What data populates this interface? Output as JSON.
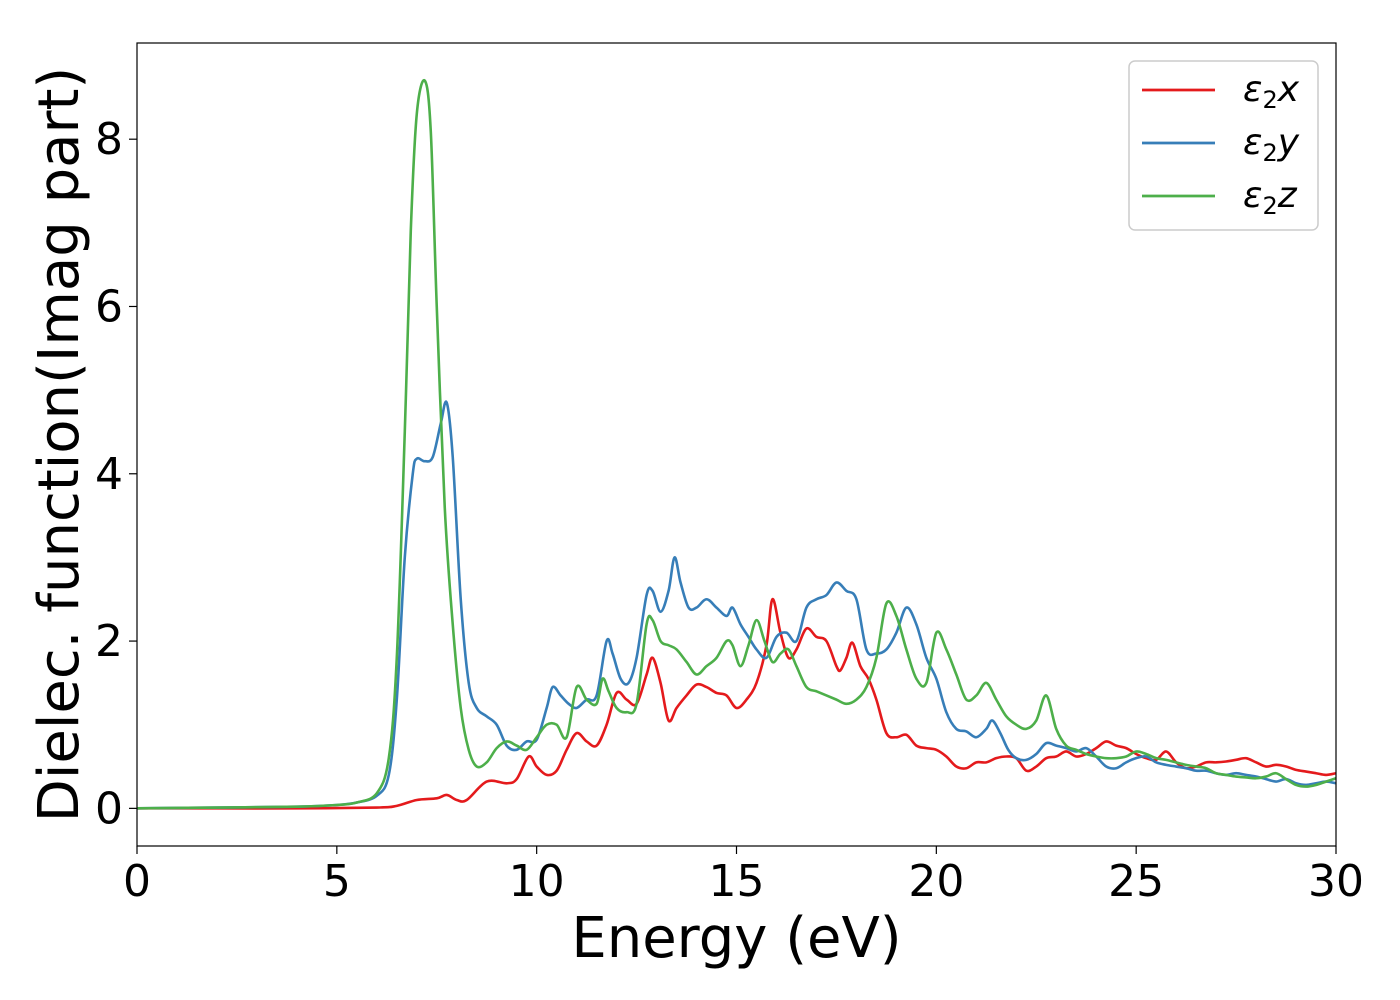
{
  "chart_data": {
    "type": "line",
    "xlabel": "Energy (eV)",
    "ylabel": "Dielec. function(Imag part)",
    "xlim": [
      0,
      30
    ],
    "ylim": [
      -0.45,
      9.15
    ],
    "xticks": [
      "0",
      "5",
      "10",
      "15",
      "20",
      "25",
      "30"
    ],
    "yticks": [
      "0",
      "2",
      "4",
      "6",
      "8"
    ],
    "grid": false,
    "legend_position": "top-right",
    "series": [
      {
        "name": "ε2x",
        "legend": {
          "base": "ε",
          "sub": "2",
          "var": "x"
        },
        "color": "#e41a1c",
        "points": [
          [
            0,
            0
          ],
          [
            2,
            0
          ],
          [
            4,
            0
          ],
          [
            6,
            0.01
          ],
          [
            6.5,
            0.03
          ],
          [
            7,
            0.1
          ],
          [
            7.5,
            0.12
          ],
          [
            7.75,
            0.16
          ],
          [
            8,
            0.1
          ],
          [
            8.25,
            0.1
          ],
          [
            8.75,
            0.32
          ],
          [
            9.25,
            0.3
          ],
          [
            9.5,
            0.35
          ],
          [
            9.8,
            0.62
          ],
          [
            10,
            0.5
          ],
          [
            10.25,
            0.4
          ],
          [
            10.5,
            0.45
          ],
          [
            10.75,
            0.7
          ],
          [
            11,
            0.9
          ],
          [
            11.25,
            0.8
          ],
          [
            11.5,
            0.75
          ],
          [
            11.75,
            1.0
          ],
          [
            12,
            1.38
          ],
          [
            12.25,
            1.3
          ],
          [
            12.5,
            1.25
          ],
          [
            12.75,
            1.6
          ],
          [
            12.9,
            1.8
          ],
          [
            13.1,
            1.5
          ],
          [
            13.3,
            1.05
          ],
          [
            13.5,
            1.2
          ],
          [
            13.75,
            1.35
          ],
          [
            14,
            1.48
          ],
          [
            14.25,
            1.45
          ],
          [
            14.5,
            1.38
          ],
          [
            14.75,
            1.35
          ],
          [
            15,
            1.2
          ],
          [
            15.25,
            1.3
          ],
          [
            15.5,
            1.5
          ],
          [
            15.75,
            1.95
          ],
          [
            15.9,
            2.5
          ],
          [
            16.1,
            2.1
          ],
          [
            16.3,
            1.8
          ],
          [
            16.5,
            1.9
          ],
          [
            16.75,
            2.15
          ],
          [
            17,
            2.05
          ],
          [
            17.25,
            2.0
          ],
          [
            17.5,
            1.7
          ],
          [
            17.6,
            1.65
          ],
          [
            17.75,
            1.8
          ],
          [
            17.9,
            1.98
          ],
          [
            18.1,
            1.7
          ],
          [
            18.3,
            1.55
          ],
          [
            18.5,
            1.3
          ],
          [
            18.75,
            0.9
          ],
          [
            19,
            0.85
          ],
          [
            19.25,
            0.88
          ],
          [
            19.5,
            0.75
          ],
          [
            19.75,
            0.72
          ],
          [
            20,
            0.7
          ],
          [
            20.25,
            0.62
          ],
          [
            20.5,
            0.5
          ],
          [
            20.75,
            0.48
          ],
          [
            21,
            0.55
          ],
          [
            21.25,
            0.55
          ],
          [
            21.5,
            0.6
          ],
          [
            21.75,
            0.62
          ],
          [
            22,
            0.6
          ],
          [
            22.25,
            0.45
          ],
          [
            22.5,
            0.5
          ],
          [
            22.75,
            0.6
          ],
          [
            23,
            0.62
          ],
          [
            23.25,
            0.68
          ],
          [
            23.5,
            0.62
          ],
          [
            23.75,
            0.65
          ],
          [
            24,
            0.72
          ],
          [
            24.25,
            0.8
          ],
          [
            24.5,
            0.75
          ],
          [
            24.75,
            0.72
          ],
          [
            25,
            0.65
          ],
          [
            25.25,
            0.6
          ],
          [
            25.5,
            0.58
          ],
          [
            25.75,
            0.68
          ],
          [
            26,
            0.55
          ],
          [
            26.25,
            0.48
          ],
          [
            26.5,
            0.5
          ],
          [
            26.75,
            0.55
          ],
          [
            27,
            0.55
          ],
          [
            27.25,
            0.56
          ],
          [
            27.5,
            0.58
          ],
          [
            27.75,
            0.6
          ],
          [
            28,
            0.55
          ],
          [
            28.25,
            0.5
          ],
          [
            28.5,
            0.52
          ],
          [
            28.75,
            0.5
          ],
          [
            29,
            0.46
          ],
          [
            29.25,
            0.44
          ],
          [
            29.5,
            0.42
          ],
          [
            29.75,
            0.4
          ],
          [
            30,
            0.42
          ]
        ]
      },
      {
        "name": "ε2y",
        "legend": {
          "base": "ε",
          "sub": "2",
          "var": "y"
        },
        "color": "#377eb8",
        "points": [
          [
            0,
            0
          ],
          [
            2,
            0.01
          ],
          [
            4,
            0.02
          ],
          [
            5,
            0.04
          ],
          [
            5.5,
            0.07
          ],
          [
            6,
            0.15
          ],
          [
            6.3,
            0.4
          ],
          [
            6.5,
            1.3
          ],
          [
            6.7,
            3.0
          ],
          [
            6.9,
            4.0
          ],
          [
            7,
            4.18
          ],
          [
            7.2,
            4.15
          ],
          [
            7.4,
            4.2
          ],
          [
            7.6,
            4.6
          ],
          [
            7.75,
            4.85
          ],
          [
            7.9,
            4.2
          ],
          [
            8.1,
            2.5
          ],
          [
            8.3,
            1.5
          ],
          [
            8.5,
            1.2
          ],
          [
            8.75,
            1.1
          ],
          [
            9,
            1.0
          ],
          [
            9.25,
            0.75
          ],
          [
            9.5,
            0.7
          ],
          [
            9.75,
            0.8
          ],
          [
            10,
            0.82
          ],
          [
            10.25,
            1.2
          ],
          [
            10.4,
            1.45
          ],
          [
            10.6,
            1.35
          ],
          [
            10.8,
            1.25
          ],
          [
            11,
            1.2
          ],
          [
            11.25,
            1.3
          ],
          [
            11.5,
            1.35
          ],
          [
            11.75,
            2.0
          ],
          [
            11.9,
            1.85
          ],
          [
            12.1,
            1.55
          ],
          [
            12.3,
            1.5
          ],
          [
            12.5,
            1.8
          ],
          [
            12.75,
            2.55
          ],
          [
            12.9,
            2.6
          ],
          [
            13.1,
            2.35
          ],
          [
            13.3,
            2.6
          ],
          [
            13.45,
            3.0
          ],
          [
            13.6,
            2.7
          ],
          [
            13.8,
            2.4
          ],
          [
            14,
            2.4
          ],
          [
            14.25,
            2.5
          ],
          [
            14.5,
            2.4
          ],
          [
            14.75,
            2.3
          ],
          [
            14.9,
            2.4
          ],
          [
            15.1,
            2.2
          ],
          [
            15.3,
            2.05
          ],
          [
            15.5,
            1.9
          ],
          [
            15.75,
            1.8
          ],
          [
            16,
            2.05
          ],
          [
            16.25,
            2.1
          ],
          [
            16.5,
            2.0
          ],
          [
            16.75,
            2.4
          ],
          [
            17,
            2.5
          ],
          [
            17.25,
            2.55
          ],
          [
            17.5,
            2.7
          ],
          [
            17.75,
            2.6
          ],
          [
            18,
            2.5
          ],
          [
            18.25,
            1.9
          ],
          [
            18.5,
            1.85
          ],
          [
            18.75,
            1.9
          ],
          [
            19,
            2.1
          ],
          [
            19.25,
            2.4
          ],
          [
            19.5,
            2.2
          ],
          [
            19.75,
            1.8
          ],
          [
            20,
            1.55
          ],
          [
            20.25,
            1.15
          ],
          [
            20.5,
            0.95
          ],
          [
            20.75,
            0.92
          ],
          [
            21,
            0.85
          ],
          [
            21.25,
            0.95
          ],
          [
            21.4,
            1.05
          ],
          [
            21.6,
            0.9
          ],
          [
            21.8,
            0.7
          ],
          [
            22,
            0.6
          ],
          [
            22.25,
            0.58
          ],
          [
            22.5,
            0.65
          ],
          [
            22.75,
            0.78
          ],
          [
            23,
            0.75
          ],
          [
            23.25,
            0.72
          ],
          [
            23.5,
            0.68
          ],
          [
            23.75,
            0.72
          ],
          [
            24,
            0.62
          ],
          [
            24.25,
            0.5
          ],
          [
            24.5,
            0.48
          ],
          [
            24.75,
            0.55
          ],
          [
            25,
            0.6
          ],
          [
            25.25,
            0.62
          ],
          [
            25.5,
            0.55
          ],
          [
            25.75,
            0.52
          ],
          [
            26,
            0.5
          ],
          [
            26.25,
            0.48
          ],
          [
            26.5,
            0.45
          ],
          [
            26.75,
            0.45
          ],
          [
            27,
            0.42
          ],
          [
            27.25,
            0.4
          ],
          [
            27.5,
            0.42
          ],
          [
            27.75,
            0.4
          ],
          [
            28,
            0.38
          ],
          [
            28.25,
            0.35
          ],
          [
            28.5,
            0.32
          ],
          [
            28.75,
            0.35
          ],
          [
            29,
            0.3
          ],
          [
            29.25,
            0.28
          ],
          [
            29.5,
            0.3
          ],
          [
            29.75,
            0.32
          ],
          [
            30,
            0.3
          ]
        ]
      },
      {
        "name": "ε2z",
        "legend": {
          "base": "ε",
          "sub": "2",
          "var": "z"
        },
        "color": "#4daf4a",
        "points": [
          [
            0,
            0
          ],
          [
            2,
            0.01
          ],
          [
            4,
            0.02
          ],
          [
            5,
            0.04
          ],
          [
            5.5,
            0.07
          ],
          [
            6,
            0.18
          ],
          [
            6.3,
            0.6
          ],
          [
            6.5,
            1.8
          ],
          [
            6.7,
            4.5
          ],
          [
            6.85,
            6.9
          ],
          [
            7,
            8.3
          ],
          [
            7.2,
            8.7
          ],
          [
            7.35,
            8.1
          ],
          [
            7.5,
            6.0
          ],
          [
            7.7,
            3.6
          ],
          [
            7.9,
            2.2
          ],
          [
            8.1,
            1.2
          ],
          [
            8.3,
            0.7
          ],
          [
            8.5,
            0.5
          ],
          [
            8.75,
            0.55
          ],
          [
            9,
            0.72
          ],
          [
            9.25,
            0.8
          ],
          [
            9.5,
            0.75
          ],
          [
            9.75,
            0.7
          ],
          [
            10,
            0.85
          ],
          [
            10.25,
            1.0
          ],
          [
            10.5,
            1.0
          ],
          [
            10.75,
            0.85
          ],
          [
            11,
            1.45
          ],
          [
            11.25,
            1.3
          ],
          [
            11.5,
            1.25
          ],
          [
            11.65,
            1.55
          ],
          [
            11.8,
            1.4
          ],
          [
            12,
            1.2
          ],
          [
            12.25,
            1.15
          ],
          [
            12.5,
            1.25
          ],
          [
            12.75,
            2.2
          ],
          [
            12.9,
            2.25
          ],
          [
            13.1,
            2.0
          ],
          [
            13.3,
            1.95
          ],
          [
            13.5,
            1.9
          ],
          [
            13.75,
            1.75
          ],
          [
            14,
            1.6
          ],
          [
            14.25,
            1.7
          ],
          [
            14.5,
            1.8
          ],
          [
            14.75,
            2.0
          ],
          [
            14.9,
            1.95
          ],
          [
            15.1,
            1.7
          ],
          [
            15.3,
            1.95
          ],
          [
            15.5,
            2.25
          ],
          [
            15.7,
            2.0
          ],
          [
            15.9,
            1.75
          ],
          [
            16.1,
            1.85
          ],
          [
            16.3,
            1.9
          ],
          [
            16.5,
            1.7
          ],
          [
            16.75,
            1.45
          ],
          [
            17,
            1.4
          ],
          [
            17.25,
            1.35
          ],
          [
            17.5,
            1.3
          ],
          [
            17.75,
            1.25
          ],
          [
            18,
            1.3
          ],
          [
            18.25,
            1.45
          ],
          [
            18.5,
            1.8
          ],
          [
            18.75,
            2.45
          ],
          [
            19,
            2.3
          ],
          [
            19.25,
            1.9
          ],
          [
            19.5,
            1.55
          ],
          [
            19.75,
            1.5
          ],
          [
            20,
            2.1
          ],
          [
            20.25,
            1.9
          ],
          [
            20.5,
            1.6
          ],
          [
            20.75,
            1.3
          ],
          [
            21,
            1.35
          ],
          [
            21.25,
            1.5
          ],
          [
            21.5,
            1.3
          ],
          [
            21.75,
            1.1
          ],
          [
            22,
            1.0
          ],
          [
            22.25,
            0.95
          ],
          [
            22.5,
            1.05
          ],
          [
            22.75,
            1.35
          ],
          [
            23,
            0.95
          ],
          [
            23.25,
            0.75
          ],
          [
            23.5,
            0.7
          ],
          [
            23.75,
            0.65
          ],
          [
            24,
            0.62
          ],
          [
            24.25,
            0.6
          ],
          [
            24.5,
            0.6
          ],
          [
            24.75,
            0.62
          ],
          [
            25,
            0.68
          ],
          [
            25.25,
            0.65
          ],
          [
            25.5,
            0.6
          ],
          [
            25.75,
            0.58
          ],
          [
            26,
            0.55
          ],
          [
            26.25,
            0.52
          ],
          [
            26.5,
            0.5
          ],
          [
            26.75,
            0.48
          ],
          [
            27,
            0.42
          ],
          [
            27.25,
            0.4
          ],
          [
            27.5,
            0.38
          ],
          [
            27.75,
            0.37
          ],
          [
            28,
            0.36
          ],
          [
            28.25,
            0.38
          ],
          [
            28.5,
            0.42
          ],
          [
            28.75,
            0.35
          ],
          [
            29,
            0.28
          ],
          [
            29.25,
            0.26
          ],
          [
            29.5,
            0.28
          ],
          [
            29.75,
            0.32
          ],
          [
            30,
            0.36
          ]
        ]
      }
    ]
  }
}
